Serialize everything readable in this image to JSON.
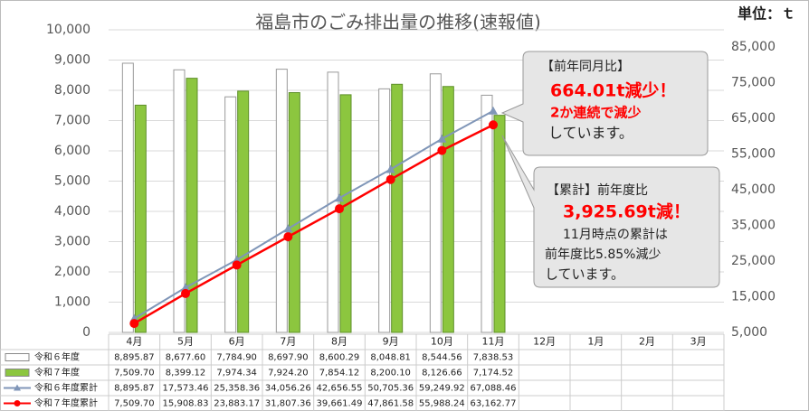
{
  "chart_data": {
    "type": "bar-line",
    "title": "福島市のごみ排出量の推移(速報値)",
    "unit_label": "単位：ｔ",
    "categories": [
      "4月",
      "5月",
      "6月",
      "7月",
      "8月",
      "9月",
      "10月",
      "11月",
      "12月",
      "1月",
      "2月",
      "3月"
    ],
    "ylim": [
      0,
      10000
    ],
    "yticks": [
      0,
      {
        "value": 1000,
        "label": "1,000"
      },
      {
        "value": 2000,
        "label": "2,000"
      },
      {
        "value": 3000,
        "label": "3,000"
      },
      {
        "value": 4000,
        "label": "4,000"
      },
      {
        "value": 5000,
        "label": "5,000"
      },
      {
        "value": 6000,
        "label": "6,000"
      },
      {
        "value": 7000,
        "label": "7,000"
      },
      {
        "value": 8000,
        "label": "8,000"
      },
      {
        "value": 9000,
        "label": "9,000"
      },
      {
        "value": 10000,
        "label": "10,000"
      }
    ],
    "y2lim": [
      5000,
      85000
    ],
    "y2ticks": [
      {
        "value": 5000,
        "label": "5,000"
      },
      {
        "value": 15000,
        "label": "15,000"
      },
      {
        "value": 25000,
        "label": "25,000"
      },
      {
        "value": 35000,
        "label": "35,000"
      },
      {
        "value": 45000,
        "label": "45,000"
      },
      {
        "value": 55000,
        "label": "55,000"
      },
      {
        "value": 65000,
        "label": "65,000"
      },
      {
        "value": 75000,
        "label": "75,000"
      },
      {
        "value": 85000,
        "label": "85,000"
      }
    ],
    "grid": true,
    "series": [
      {
        "name": "令和６年度",
        "kind": "bar",
        "color": "#ffffff",
        "values": [
          8895.87,
          8677.6,
          7784.9,
          8697.9,
          8600.29,
          8048.81,
          8544.56,
          7838.53,
          null,
          null,
          null,
          null
        ],
        "value_labels": [
          "8,895.87",
          "8,677.60",
          "7,784.90",
          "8,697.90",
          "8,600.29",
          "8,048.81",
          "8,544.56",
          "7,838.53",
          null,
          null,
          null,
          null
        ]
      },
      {
        "name": "令和７年度",
        "kind": "bar",
        "color": "#8cc63f",
        "values": [
          7509.7,
          8399.12,
          7974.34,
          7924.2,
          7854.12,
          8200.1,
          8126.66,
          7174.52,
          null,
          null,
          null,
          null
        ],
        "value_labels": [
          "7,509.70",
          "8,399.12",
          "7,974.34",
          "7,924.20",
          "7,854.12",
          "8,200.10",
          "8,126.66",
          "7,174.52",
          null,
          null,
          null,
          null
        ]
      },
      {
        "name": "令和６年度累計",
        "kind": "line",
        "axis": "y2",
        "marker": "triangle",
        "color": "#8096b8",
        "values": [
          8895.87,
          17573.46,
          25358.36,
          34056.26,
          42656.55,
          50705.36,
          59249.92,
          67088.46,
          null,
          null,
          null,
          null
        ],
        "value_labels": [
          "8,895.87",
          "17,573.46",
          "25,358.36",
          "34,056.26",
          "42,656.55",
          "50,705.36",
          "59,249.92",
          "67,088.46",
          null,
          null,
          null,
          null
        ]
      },
      {
        "name": "令和７年度累計",
        "kind": "line",
        "axis": "y2",
        "marker": "circle",
        "color": "#ff0000",
        "values": [
          7509.7,
          15908.83,
          23883.17,
          31807.36,
          39661.49,
          47861.58,
          55988.24,
          63162.77,
          null,
          null,
          null,
          null
        ],
        "value_labels": [
          "7,509.70",
          "15,908.83",
          "23,883.17",
          "31,807.36",
          "39,661.49",
          "47,861.58",
          "55,988.24",
          "63,162.77",
          null,
          null,
          null,
          null
        ]
      }
    ],
    "annotations": [
      {
        "lines": [
          "【前年同月比】",
          "664.01t減少！",
          "2か連続で減少",
          "しています。"
        ]
      },
      {
        "lines": [
          "【累計】前年度比",
          "3,925.69t減！",
          "11月時点の累計は",
          "前年度比5.85%減少",
          "しています。"
        ]
      }
    ]
  }
}
